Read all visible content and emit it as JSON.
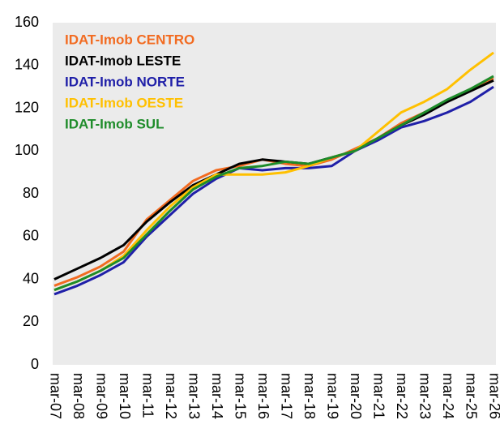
{
  "chart_data": {
    "type": "line",
    "categories": [
      "mar-07",
      "mar-08",
      "mar-09",
      "mar-10",
      "mar-11",
      "mar-12",
      "mar-13",
      "mar-14",
      "mar-15",
      "mar-16",
      "mar-17",
      "mar-18",
      "mar-19",
      "mar-20",
      "mar-21",
      "mar-22",
      "mar-23",
      "mar-24",
      "mar-25",
      "mar-26"
    ],
    "series": [
      {
        "name": "IDAT-Imob CENTRO",
        "color": "#f26b21",
        "values": [
          37,
          41,
          46,
          53,
          68,
          77,
          86,
          91,
          93,
          96,
          94,
          93,
          96,
          101,
          106,
          113,
          118,
          123,
          129,
          134
        ]
      },
      {
        "name": "IDAT-Imob LESTE",
        "color": "#000000",
        "values": [
          40,
          45,
          50,
          56,
          67,
          76,
          84,
          89,
          94,
          96,
          95,
          94,
          97,
          100,
          106,
          112,
          117,
          123,
          128,
          133
        ]
      },
      {
        "name": "IDAT-Imob NORTE",
        "color": "#1f1fa8",
        "values": [
          33,
          37,
          42,
          48,
          60,
          70,
          80,
          87,
          92,
          91,
          92,
          92,
          93,
          100,
          105,
          111,
          114,
          118,
          123,
          130
        ]
      },
      {
        "name": "IDAT-Imob OESTE",
        "color": "#ffc000",
        "values": [
          35,
          39,
          44,
          51,
          63,
          74,
          83,
          89,
          89,
          89,
          90,
          93,
          97,
          100,
          109,
          118,
          123,
          129,
          138,
          146
        ]
      },
      {
        "name": "IDAT-Imob SUL",
        "color": "#1e8c2a",
        "values": [
          35,
          39,
          44,
          50,
          61,
          72,
          82,
          88,
          92,
          93,
          95,
          94,
          97,
          100,
          106,
          112,
          118,
          124,
          129,
          135
        ]
      }
    ],
    "ylim": [
      0,
      160
    ],
    "yticks": [
      0,
      20,
      40,
      60,
      80,
      100,
      120,
      140,
      160
    ],
    "grid": false,
    "legend": "upper left"
  }
}
